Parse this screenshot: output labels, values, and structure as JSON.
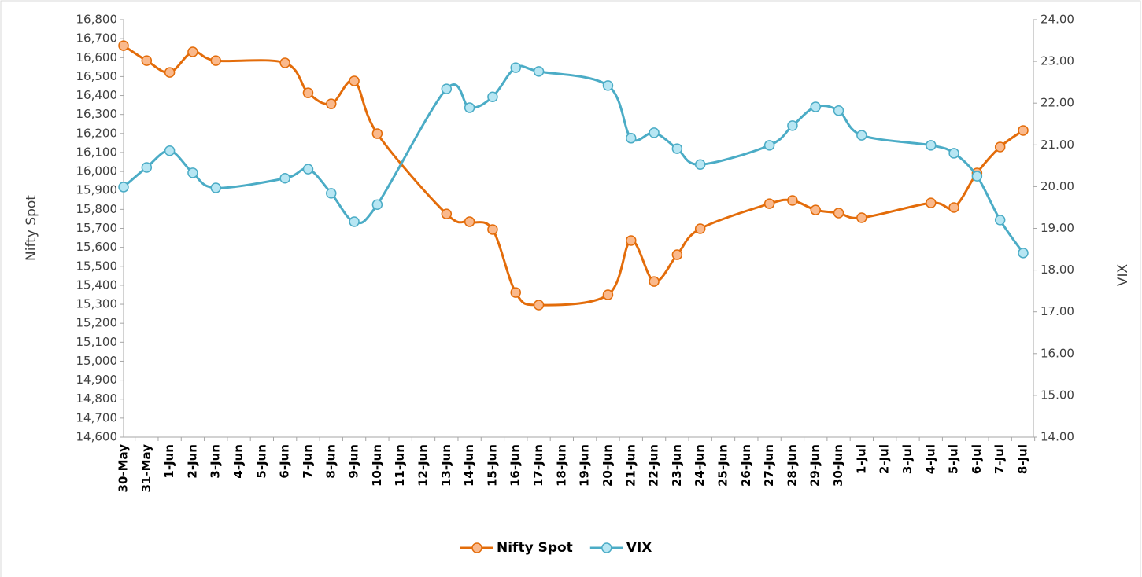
{
  "chart_data": {
    "type": "line",
    "categories": [
      "30-May",
      "31-May",
      "1-Jun",
      "2-Jun",
      "3-Jun",
      "4-Jun",
      "5-Jun",
      "6-Jun",
      "7-Jun",
      "8-Jun",
      "9-Jun",
      "10-Jun",
      "11-Jun",
      "12-Jun",
      "13-Jun",
      "14-Jun",
      "15-Jun",
      "16-Jun",
      "17-Jun",
      "18-Jun",
      "19-Jun",
      "20-Jun",
      "21-Jun",
      "22-Jun",
      "23-Jun",
      "24-Jun",
      "25-Jun",
      "26-Jun",
      "27-Jun",
      "28-Jun",
      "29-Jun",
      "30-Jun",
      "1-Jul",
      "2-Jul",
      "3-Jul",
      "4-Jul",
      "5-Jul",
      "6-Jul",
      "7-Jul",
      "8-Jul"
    ],
    "series": [
      {
        "name": "Nifty Spot",
        "color": "#e36c0a",
        "marker_color": "#fab98c",
        "axis": "y",
        "values": [
          16663,
          16584,
          16522,
          16630,
          16584,
          null,
          null,
          16572,
          16414,
          16356,
          16477,
          16199,
          null,
          null,
          15776,
          15735,
          15694,
          15362,
          15296,
          null,
          null,
          15350,
          15636,
          15420,
          15561,
          15698,
          null,
          null,
          15830,
          15847,
          15797,
          15781,
          15756,
          null,
          null,
          15834,
          15810,
          15992,
          16129,
          16216
        ]
      },
      {
        "name": "VIX",
        "color": "#4bacc6",
        "marker_color": "#b7e6f3",
        "axis": "y2",
        "values": [
          19.99,
          20.46,
          20.86,
          20.33,
          19.97,
          null,
          null,
          20.2,
          20.42,
          19.84,
          19.16,
          19.57,
          null,
          null,
          22.34,
          21.89,
          22.15,
          22.85,
          22.76,
          null,
          null,
          22.42,
          21.16,
          21.29,
          20.91,
          20.53,
          null,
          null,
          20.99,
          21.46,
          21.91,
          21.82,
          21.23,
          null,
          null,
          20.99,
          20.8,
          20.25,
          19.2,
          18.41
        ]
      }
    ],
    "ylabel": "Nifty Spot",
    "y2label": "VIX",
    "ylim": [
      14600,
      16800
    ],
    "yticks": [
      {
        "value": 14600,
        "label": "14,600"
      },
      {
        "value": 14700,
        "label": "14,700"
      },
      {
        "value": 14800,
        "label": "14,800"
      },
      {
        "value": 14900,
        "label": "14,900"
      },
      {
        "value": 15000,
        "label": "15,000"
      },
      {
        "value": 15100,
        "label": "15,100"
      },
      {
        "value": 15200,
        "label": "15,200"
      },
      {
        "value": 15300,
        "label": "15,300"
      },
      {
        "value": 15400,
        "label": "15,400"
      },
      {
        "value": 15500,
        "label": "15,500"
      },
      {
        "value": 15600,
        "label": "15,600"
      },
      {
        "value": 15700,
        "label": "15,700"
      },
      {
        "value": 15800,
        "label": "15,800"
      },
      {
        "value": 15900,
        "label": "15,900"
      },
      {
        "value": 16000,
        "label": "16,000"
      },
      {
        "value": 16100,
        "label": "16,100"
      },
      {
        "value": 16200,
        "label": "16,200"
      },
      {
        "value": 16300,
        "label": "16,300"
      },
      {
        "value": 16400,
        "label": "16,400"
      },
      {
        "value": 16500,
        "label": "16,500"
      },
      {
        "value": 16600,
        "label": "16,600"
      },
      {
        "value": 16700,
        "label": "16,700"
      },
      {
        "value": 16800,
        "label": "16,800"
      }
    ],
    "y2lim": [
      14,
      24
    ],
    "y2ticks": [
      {
        "value": 14,
        "label": "14.00"
      },
      {
        "value": 15,
        "label": "15.00"
      },
      {
        "value": 16,
        "label": "16.00"
      },
      {
        "value": 17,
        "label": "17.00"
      },
      {
        "value": 18,
        "label": "18.00"
      },
      {
        "value": 19,
        "label": "19.00"
      },
      {
        "value": 20,
        "label": "20.00"
      },
      {
        "value": 21,
        "label": "21.00"
      },
      {
        "value": 22,
        "label": "22.00"
      },
      {
        "value": 23,
        "label": "23.00"
      },
      {
        "value": 24,
        "label": "24.00"
      }
    ],
    "grid": false,
    "legend": "bottom"
  }
}
